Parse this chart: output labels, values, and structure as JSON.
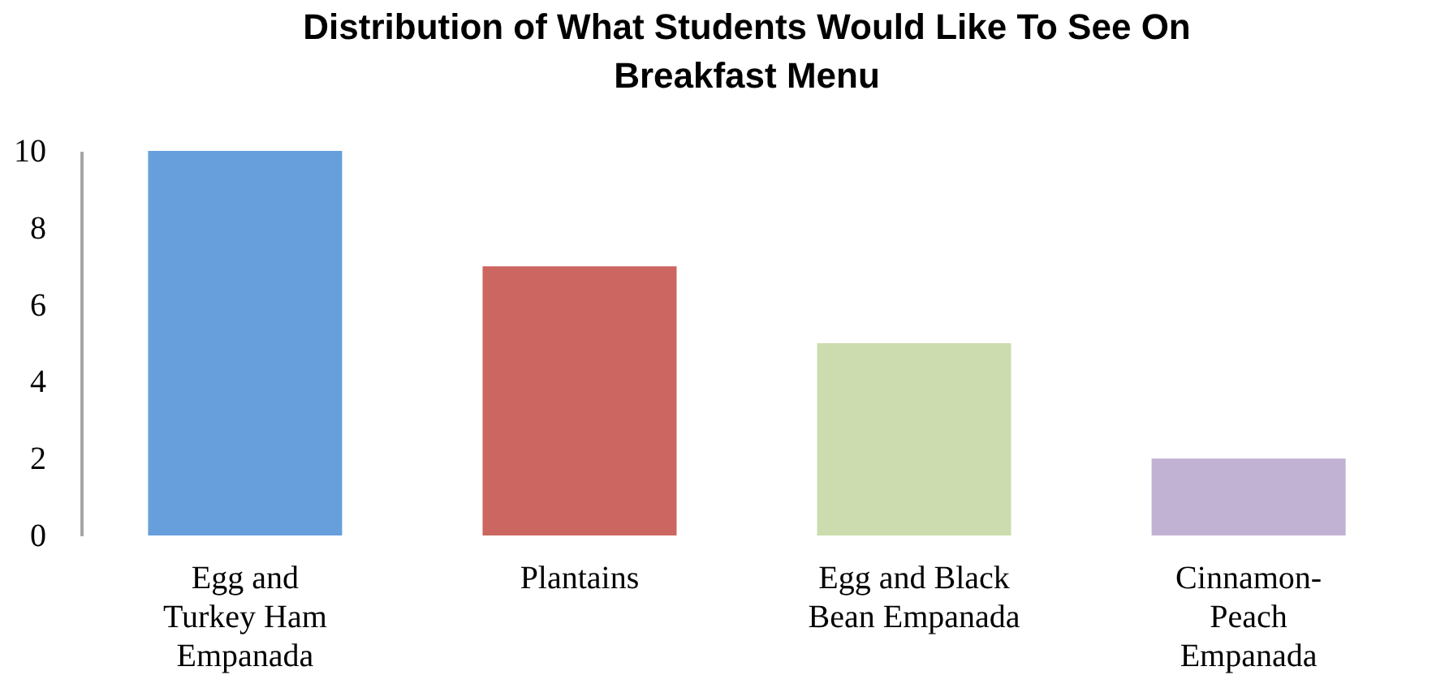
{
  "chart_data": {
    "type": "bar",
    "title": "Distribution of What Students Would Like To See On Breakfast Menu",
    "categories": [
      "Egg and Turkey Ham Empanada",
      "Plantains",
      "Egg and Black Bean Empanada",
      "Cinnamon-Peach Empanada"
    ],
    "values": [
      10,
      7,
      5,
      2
    ],
    "colors": [
      "#669fdc",
      "#cc6660",
      "#cddcae",
      "#c1b1d3"
    ],
    "ylim": [
      0,
      10
    ],
    "yticks": [
      0,
      2,
      4,
      6,
      8,
      10
    ],
    "grid": false
  }
}
